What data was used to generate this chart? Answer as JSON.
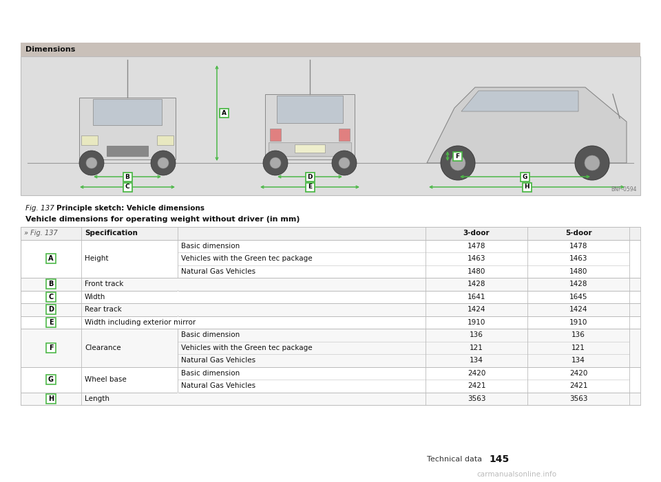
{
  "title": "Dimensions",
  "fig_caption_bold": "Fig. 137",
  "fig_caption_rest": "  Principle sketch: Vehicle dimensions",
  "table_header": "Vehicle dimensions for operating weight without driver (in mm)",
  "header_bg": "#c9c0b9",
  "image_bg": "#dedede",
  "image_border": "#bbbbbb",
  "page_bg": "#ffffff",
  "table_border_color": "#bbbbbb",
  "table_inner_color": "#cccccc",
  "green_color": "#4db848",
  "header_row_bg": "#f2f2f2",
  "alt_row_bg": "#f7f7f7",
  "white_row_bg": "#ffffff",
  "col_header_label": "» Fig. 137",
  "col_header_spec": "Specification",
  "col_header_3door": "3-door",
  "col_header_5door": "5-door",
  "groups": [
    {
      "label": "A",
      "main": "Height",
      "subrows": [
        {
          "sub": "Basic dimension",
          "v3": "1478",
          "v4": "1478"
        },
        {
          "sub": "Vehicles with the Green tec package",
          "v3": "1463",
          "v4": "1463"
        },
        {
          "sub": "Natural Gas Vehicles",
          "v3": "1480",
          "v4": "1480"
        }
      ]
    },
    {
      "label": "B",
      "main": "Front track",
      "subrows": [
        {
          "sub": "",
          "v3": "1428",
          "v4": "1428"
        }
      ]
    },
    {
      "label": "C",
      "main": "Width",
      "subrows": [
        {
          "sub": "",
          "v3": "1641",
          "v4": "1645"
        }
      ]
    },
    {
      "label": "D",
      "main": "Rear track",
      "subrows": [
        {
          "sub": "",
          "v3": "1424",
          "v4": "1424"
        }
      ]
    },
    {
      "label": "E",
      "main": "Width including exterior mirror",
      "subrows": [
        {
          "sub": "",
          "v3": "1910",
          "v4": "1910"
        }
      ]
    },
    {
      "label": "F",
      "main": "Clearance",
      "subrows": [
        {
          "sub": "Basic dimension",
          "v3": "136",
          "v4": "136"
        },
        {
          "sub": "Vehicles with the Green tec package",
          "v3": "121",
          "v4": "121"
        },
        {
          "sub": "Natural Gas Vehicles",
          "v3": "134",
          "v4": "134"
        }
      ]
    },
    {
      "label": "G",
      "main": "Wheel base",
      "subrows": [
        {
          "sub": "Basic dimension",
          "v3": "2420",
          "v4": "2420"
        },
        {
          "sub": "Natural Gas Vehicles",
          "v3": "2421",
          "v4": "2421"
        }
      ]
    },
    {
      "label": "H",
      "main": "Length",
      "subrows": [
        {
          "sub": "",
          "v3": "3563",
          "v4": "3563"
        }
      ]
    }
  ],
  "footer_label": "Technical data",
  "footer_page": "145",
  "watermark": "carmanualsonline.info",
  "img_code": "BNF-0594"
}
